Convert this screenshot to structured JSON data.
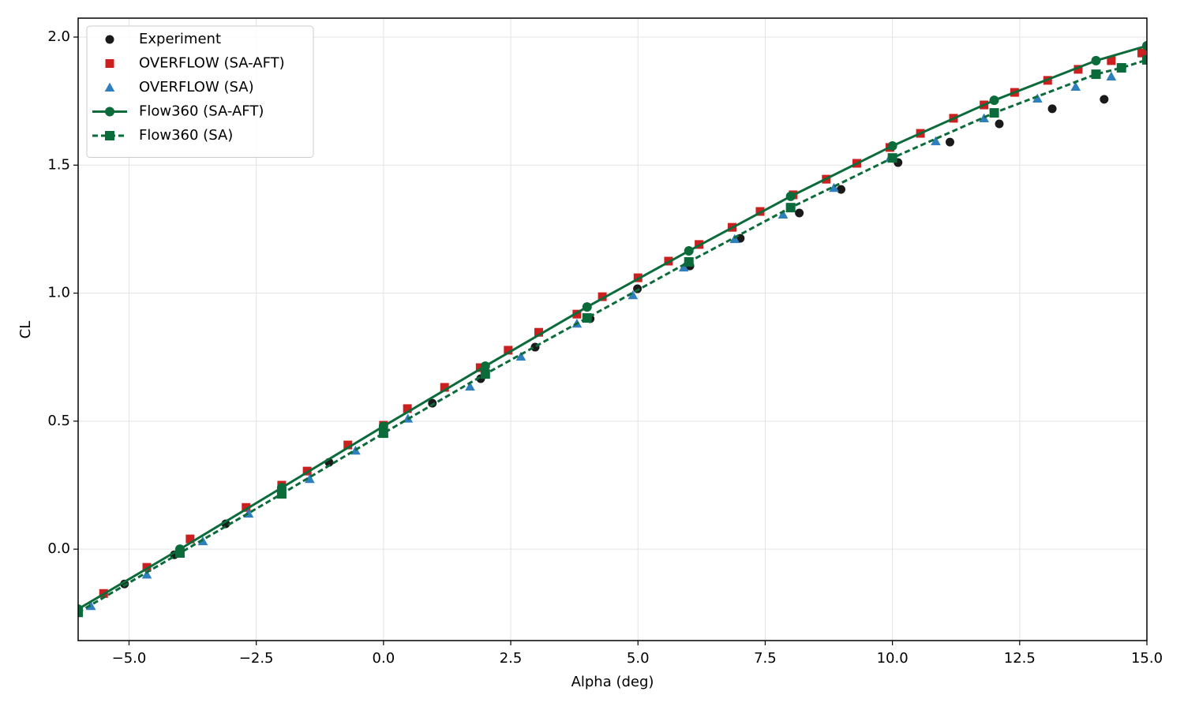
{
  "chart_data": {
    "type": "line",
    "xlabel": "Alpha (deg)",
    "ylabel": "CL",
    "xlim": [
      -6,
      15
    ],
    "ylim": [
      -0.357,
      2.074
    ],
    "xticks": [
      {
        "value": -5,
        "label": "−5.0"
      },
      {
        "value": -2.5,
        "label": "−2.5"
      },
      {
        "value": 0,
        "label": "0.0"
      },
      2.5,
      {
        "value": 5,
        "label": "5.0"
      },
      7.5,
      {
        "value": 10,
        "label": "10.0"
      },
      12.5,
      {
        "value": 15,
        "label": "15.0"
      }
    ],
    "yticks": [
      {
        "value": 0,
        "label": "0.0"
      },
      0.5,
      {
        "value": 1,
        "label": "1.0"
      },
      1.5,
      {
        "value": 2,
        "label": "2.0"
      }
    ],
    "grid": true,
    "legend": "upper left",
    "series": [
      {
        "name": "Experiment",
        "color": "#1a1a1a",
        "marker": "circle",
        "linestyle": "none",
        "x": [
          -5.09,
          -4.11,
          -3.1,
          -2.0,
          -1.07,
          0.0,
          0.96,
          1.91,
          2.98,
          4.06,
          4.99,
          6.02,
          7.01,
          8.17,
          8.99,
          10.11,
          11.13,
          12.1,
          13.14,
          14.16
        ],
        "values": [
          -0.136,
          -0.022,
          0.099,
          0.216,
          0.339,
          0.46,
          0.57,
          0.666,
          0.789,
          0.9,
          1.017,
          1.106,
          1.214,
          1.313,
          1.405,
          1.51,
          1.59,
          1.661,
          1.72,
          1.757
        ]
      },
      {
        "name": "OVERFLOW (SA-AFT)",
        "color": "#cc1f1f",
        "marker": "square",
        "linestyle": "none",
        "x": [
          -5.5,
          -4.65,
          -3.8,
          -2.7,
          -2.0,
          -1.5,
          -0.7,
          0.0,
          0.47,
          1.2,
          1.9,
          2.45,
          3.05,
          3.8,
          4.3,
          5.0,
          5.6,
          6.2,
          6.85,
          7.4,
          8.05,
          8.7,
          9.3,
          9.95,
          10.55,
          11.2,
          11.8,
          12.4,
          13.05,
          13.65,
          14.3,
          14.9
        ],
        "values": [
          -0.173,
          -0.071,
          0.04,
          0.163,
          0.25,
          0.305,
          0.407,
          0.484,
          0.549,
          0.632,
          0.709,
          0.777,
          0.847,
          0.918,
          0.986,
          1.06,
          1.125,
          1.19,
          1.257,
          1.319,
          1.384,
          1.445,
          1.507,
          1.569,
          1.624,
          1.683,
          1.735,
          1.784,
          1.831,
          1.874,
          1.908,
          1.938
        ]
      },
      {
        "name": "OVERFLOW (SA)",
        "color": "#2f7fbf",
        "marker": "triangle",
        "linestyle": "none",
        "x": [
          -5.75,
          -4.65,
          -3.55,
          -2.65,
          -1.45,
          -0.55,
          0.48,
          1.7,
          2.7,
          3.8,
          4.9,
          5.9,
          6.9,
          7.85,
          8.85,
          9.95,
          10.85,
          11.8,
          12.85,
          13.6,
          14.3
        ],
        "values": [
          -0.222,
          -0.099,
          0.031,
          0.139,
          0.274,
          0.385,
          0.51,
          0.635,
          0.752,
          0.881,
          0.992,
          1.1,
          1.211,
          1.307,
          1.411,
          1.528,
          1.593,
          1.683,
          1.76,
          1.806,
          1.846
        ]
      },
      {
        "name": "Flow360 (SA-AFT)",
        "color": "#0b6b3a",
        "marker": "circle",
        "linestyle": "solid",
        "x": [
          -6,
          -4,
          -2,
          0,
          2,
          4,
          6,
          8,
          10,
          12,
          14,
          15
        ],
        "values": [
          -0.234,
          0.0,
          0.24,
          0.48,
          0.715,
          0.946,
          1.165,
          1.378,
          1.575,
          1.753,
          1.908,
          1.966
        ]
      },
      {
        "name": "Flow360 (SA)",
        "color": "#0b6b3a",
        "marker": "square",
        "linestyle": "dashed",
        "x": [
          -6,
          -4,
          -2,
          0,
          2,
          4,
          6,
          8,
          10,
          12,
          14,
          14.5,
          15
        ],
        "values": [
          -0.247,
          -0.015,
          0.216,
          0.453,
          0.684,
          0.903,
          1.122,
          1.334,
          1.528,
          1.704,
          1.855,
          1.88,
          1.911
        ]
      }
    ]
  }
}
